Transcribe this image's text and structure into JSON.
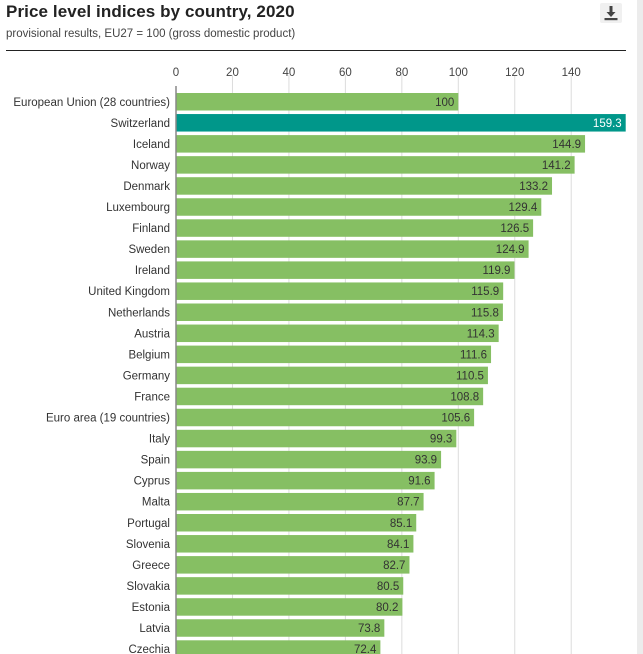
{
  "header": {
    "title": "Price level indices by country, 2020",
    "subtitle": "provisional results, EU27 = 100 (gross domestic product)",
    "download_icon": "download-icon"
  },
  "chart_data": {
    "type": "bar",
    "orientation": "horizontal",
    "title": "Price level indices by country, 2020",
    "subtitle": "provisional results, EU27 = 100 (gross domestic product)",
    "xlabel": "",
    "ylabel": "",
    "xlim": [
      0,
      160
    ],
    "xticks": [
      0,
      20,
      40,
      60,
      80,
      100,
      120,
      140
    ],
    "xtick_labels": [
      "0",
      "20",
      "40",
      "60",
      "80",
      "100",
      "120",
      "140"
    ],
    "axis_position": "top",
    "grid": true,
    "colors": {
      "default": "#86bf63",
      "highlight": "#00978a"
    },
    "highlight": "Switzerland",
    "categories": [
      "European Union (28 countries)",
      "Switzerland",
      "Iceland",
      "Norway",
      "Denmark",
      "Luxembourg",
      "Finland",
      "Sweden",
      "Ireland",
      "United Kingdom",
      "Netherlands",
      "Austria",
      "Belgium",
      "Germany",
      "France",
      "Euro area (19 countries)",
      "Italy",
      "Spain",
      "Cyprus",
      "Malta",
      "Portugal",
      "Slovenia",
      "Greece",
      "Slovakia",
      "Estonia",
      "Latvia",
      "Czechia"
    ],
    "values": [
      100,
      159.3,
      144.9,
      141.2,
      133.2,
      129.4,
      126.5,
      124.9,
      119.9,
      115.9,
      115.8,
      114.3,
      111.6,
      110.5,
      108.8,
      105.6,
      99.3,
      93.9,
      91.6,
      87.7,
      85.1,
      84.1,
      82.7,
      80.5,
      80.2,
      73.8,
      72.4
    ],
    "value_labels": [
      "100",
      "159.3",
      "144.9",
      "141.2",
      "133.2",
      "129.4",
      "126.5",
      "124.9",
      "119.9",
      "115.9",
      "115.8",
      "114.3",
      "111.6",
      "110.5",
      "108.8",
      "105.6",
      "99.3",
      "93.9",
      "91.6",
      "87.7",
      "85.1",
      "84.1",
      "82.7",
      "80.5",
      "80.2",
      "73.8",
      "72.4"
    ]
  }
}
